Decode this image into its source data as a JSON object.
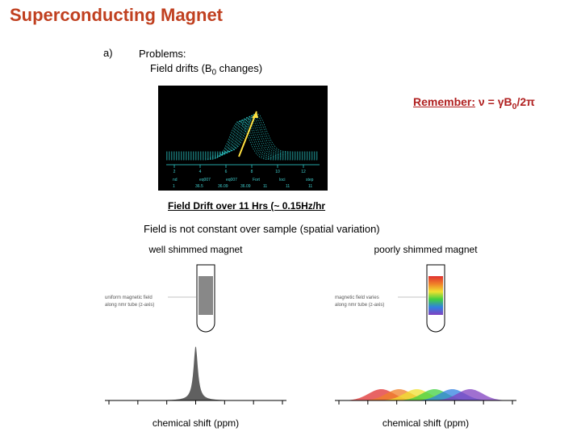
{
  "title_text": "Superconducting Magnet",
  "title_color": "#c04020",
  "list_marker": "a)",
  "problems_label": "Problems:",
  "problem1_prefix": "Field drifts (B",
  "problem1_suffix": " changes)",
  "problem1_sub": "0",
  "remember_label": "Remember:",
  "remember_formula_lhs": "ν",
  "remember_formula_eq": " = ",
  "remember_formula_rhs_a": "γB",
  "remember_formula_rhs_sub": "0",
  "remember_formula_rhs_b": "/2π",
  "remember_color": "#b02020",
  "drift_plot": {
    "bg": "#000000",
    "trace_color": "#2fd8d8",
    "arrow_color": "#ffe040",
    "n_traces": 11,
    "label_color": "#40d0d0",
    "x_ticks": [
      2,
      4,
      6,
      8,
      10,
      12
    ],
    "bottom_labels": [
      "nd",
      "eq007",
      "eq007",
      "Fort",
      "loci",
      "step"
    ],
    "bottom_labels2": [
      "1",
      "36.5",
      "36.09",
      "36.09",
      "11",
      "11",
      "11"
    ]
  },
  "drift_caption": "Field Drift over 11 Hrs (~ 0.15Hz/hr",
  "spatial_variation_text": "Field is not constant over sample (spatial variation)",
  "shim": {
    "well": {
      "title": "well shimmed magnet",
      "tube_fill": "#888888",
      "tube_caption1": "uniform magnetic field",
      "tube_caption2": "along nmr tube (z-axis)",
      "peak_color": "#606060",
      "axis_label": "chemical shift (ppm)",
      "peak_type": "sharp"
    },
    "poor": {
      "title": "poorly shimmed magnet",
      "gradient_colors": [
        "#e03030",
        "#f08028",
        "#f0e030",
        "#40d040",
        "#3080e0",
        "#8040c0"
      ],
      "tube_caption1": "magnetic field varies",
      "tube_caption2": "along nmr tube (z-axis)",
      "peak_colors": [
        "#e03030",
        "#f08028",
        "#f0e030",
        "#40d040",
        "#3080e0",
        "#8040c0"
      ],
      "axis_label": "chemical shift (ppm)",
      "peak_type": "broad"
    },
    "axis_color": "#000000",
    "tick_count": 7
  }
}
